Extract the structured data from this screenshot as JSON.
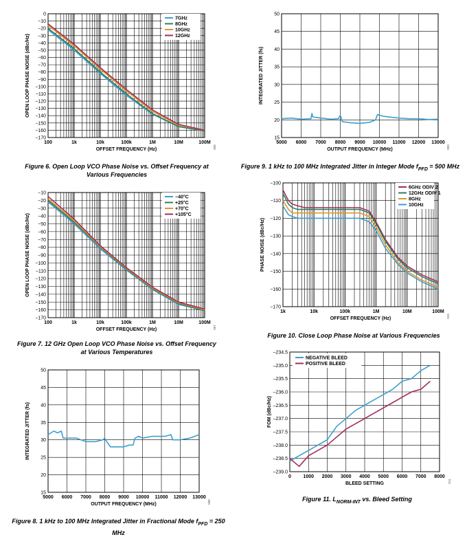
{
  "colors": {
    "blue": "#3b9fd0",
    "green": "#2e7d5b",
    "orange": "#e0962c",
    "red": "#a52a5a",
    "grid": "#000000"
  },
  "captions": {
    "fig6": "Figure 6. Open Loop VCO Phase Noise vs. Offset Frequency at Various Frequencies",
    "fig7": "Figure 7. 12 GHz Open Loop VCO Phase Noise vs. Offset Frequency at Various Temperatures",
    "fig8_pre": "Figure 8. 1 kHz to 100 MHz Integrated Jitter in Fractional Mode f",
    "fig8_sub": "PFD",
    "fig8_post": " = 250 MHz",
    "fig9_pre": "Figure 9. 1 kHz to 100 MHz Integrated Jitter in Integer Mode f",
    "fig9_sub": "PFD",
    "fig9_post": " = 500 MHz",
    "fig10": "Figure 10. Close Loop Phase Noise at Various Frequencies",
    "fig11_pre": "Figure 11. L",
    "fig11_sub": "NORM-INT",
    "fig11_post": " vs. Bleed Setting"
  },
  "chart_data": [
    {
      "id": "fig6",
      "type": "line",
      "xscale": "log",
      "xlim": [
        100,
        100000000
      ],
      "ylim": [
        -170,
        0
      ],
      "xticks": [
        100,
        1000,
        10000,
        100000,
        1000000,
        10000000,
        100000000
      ],
      "xticklabels": [
        "100",
        "1k",
        "10k",
        "100k",
        "1M",
        "10M",
        "100M"
      ],
      "yticks": [
        0,
        -10,
        -20,
        -30,
        -40,
        -50,
        -60,
        -70,
        -80,
        -90,
        -100,
        -110,
        -120,
        -130,
        -140,
        -150,
        -160,
        -170
      ],
      "xlabel": "OFFSET FREQUENCY (Hz)",
      "ylabel": "OPEN LOOP PHASE NOISE (dBc/Hz)",
      "side_code": "006",
      "legend_position": "top-right",
      "series": [
        {
          "name": "7GHz",
          "color": "#3b9fd0",
          "x": [
            100,
            1000,
            10000,
            100000,
            1000000,
            10000000,
            100000000
          ],
          "y": [
            -22,
            -50,
            -82,
            -112,
            -138,
            -155,
            -161
          ]
        },
        {
          "name": "8GHz",
          "color": "#2e7d5b",
          "x": [
            100,
            1000,
            10000,
            100000,
            1000000,
            10000000,
            100000000
          ],
          "y": [
            -20,
            -48,
            -80,
            -110,
            -137,
            -155,
            -161
          ]
        },
        {
          "name": "10GHz",
          "color": "#e0962c",
          "x": [
            100,
            1000,
            10000,
            100000,
            1000000,
            10000000,
            100000000
          ],
          "y": [
            -16,
            -44,
            -76,
            -106,
            -134,
            -153,
            -160
          ]
        },
        {
          "name": "12GHz",
          "color": "#a52a5a",
          "x": [
            100,
            1000,
            10000,
            100000,
            1000000,
            10000000,
            100000000
          ],
          "y": [
            -14,
            -42,
            -74,
            -104,
            -132,
            -152,
            -160
          ]
        }
      ]
    },
    {
      "id": "fig7",
      "type": "line",
      "xscale": "log",
      "xlim": [
        100,
        100000000
      ],
      "ylim": [
        -170,
        -10
      ],
      "xticks": [
        100,
        1000,
        10000,
        100000,
        1000000,
        10000000,
        100000000
      ],
      "xticklabels": [
        "100",
        "1k",
        "10k",
        "100k",
        "1M",
        "10M",
        "100M"
      ],
      "yticks": [
        -10,
        -20,
        -30,
        -40,
        -50,
        -60,
        -70,
        -80,
        -90,
        -100,
        -110,
        -120,
        -130,
        -140,
        -150,
        -160,
        -170
      ],
      "xlabel": "OFFSET FREQUENCY (Hz)",
      "ylabel": "OPEN LOOP PHASE NOISE (dBc/Hz)",
      "side_code": "007",
      "legend_position": "top-right",
      "series": [
        {
          "name": "−40°C",
          "color": "#3b9fd0",
          "x": [
            100,
            1000,
            10000,
            100000,
            1000000,
            10000000,
            100000000
          ],
          "y": [
            -22,
            -50,
            -82,
            -109,
            -134,
            -153,
            -161
          ]
        },
        {
          "name": "+25°C",
          "color": "#2e7d5b",
          "x": [
            100,
            1000,
            10000,
            100000,
            1000000,
            10000000,
            100000000
          ],
          "y": [
            -20,
            -48,
            -80,
            -108,
            -133,
            -152,
            -161
          ]
        },
        {
          "name": "+70°C",
          "color": "#e0962c",
          "x": [
            100,
            1000,
            10000,
            100000,
            1000000,
            10000000,
            100000000
          ],
          "y": [
            -18,
            -46,
            -79,
            -107,
            -132,
            -151,
            -160
          ]
        },
        {
          "name": "+105°C",
          "color": "#a52a5a",
          "x": [
            100,
            1000,
            10000,
            100000,
            1000000,
            10000000,
            100000000
          ],
          "y": [
            -15,
            -44,
            -78,
            -106,
            -131,
            -150,
            -159
          ]
        }
      ]
    },
    {
      "id": "fig8",
      "type": "line",
      "xscale": "linear",
      "xlim": [
        5000,
        13000
      ],
      "ylim": [
        15,
        50
      ],
      "xticks": [
        5000,
        6000,
        7000,
        8000,
        9000,
        10000,
        11000,
        12000,
        13000
      ],
      "xticklabels": [
        "5000",
        "6000",
        "7000",
        "8000",
        "9000",
        "10000",
        "11000",
        "12000",
        "13000"
      ],
      "yticks": [
        15,
        20,
        25,
        30,
        35,
        40,
        45,
        50
      ],
      "xlabel": "OUTPUT FREQUENCY (MHz)",
      "ylabel": "INTEGRATED JITTER (fs)",
      "side_code": "008",
      "series": [
        {
          "color": "#3b9fd0",
          "x": [
            5000,
            5300,
            5500,
            5700,
            5800,
            6000,
            6500,
            7000,
            7500,
            7900,
            8000,
            8100,
            8300,
            8600,
            9000,
            9300,
            9500,
            9600,
            9800,
            10000,
            10500,
            11000,
            11200,
            11500,
            11600,
            12000,
            12500,
            13000
          ],
          "y": [
            31.5,
            32.5,
            32.0,
            32.5,
            30.5,
            30.5,
            30.5,
            29.5,
            29.5,
            30.0,
            30.5,
            29.5,
            28.0,
            28.0,
            28.0,
            28.5,
            28.5,
            30.5,
            31.0,
            30.5,
            31.0,
            31.0,
            31.0,
            31.5,
            30.0,
            30.0,
            30.5,
            31.5
          ]
        }
      ]
    },
    {
      "id": "fig9",
      "type": "line",
      "xscale": "linear",
      "xlim": [
        5000,
        13000
      ],
      "ylim": [
        15,
        50
      ],
      "xticks": [
        5000,
        6000,
        7000,
        8000,
        9000,
        10000,
        11000,
        12000,
        13000
      ],
      "xticklabels": [
        "5000",
        "6000",
        "7000",
        "8000",
        "9000",
        "10000",
        "11000",
        "12000",
        "13000"
      ],
      "yticks": [
        15,
        20,
        25,
        30,
        35,
        40,
        45,
        50
      ],
      "xlabel": "OUTPUT FREQUENCY (MHz)",
      "ylabel": "INTEGRATED JITTER (fs)",
      "side_code": "009",
      "series": [
        {
          "color": "#3b9fd0",
          "x": [
            5000,
            5500,
            6000,
            6500,
            6550,
            6600,
            7000,
            7500,
            7900,
            8000,
            8100,
            8500,
            9000,
            9500,
            9800,
            9900,
            10200,
            10500,
            11000,
            11500,
            12000,
            12500,
            13000
          ],
          "y": [
            20.3,
            20.5,
            20.2,
            20.3,
            21.8,
            20.8,
            20.5,
            20.2,
            20.3,
            21.3,
            19.5,
            19.2,
            19.0,
            19.3,
            20.0,
            21.5,
            21.0,
            20.8,
            20.5,
            20.3,
            20.3,
            20.1,
            20.2
          ]
        }
      ]
    },
    {
      "id": "fig10",
      "type": "line",
      "xscale": "log",
      "xlim": [
        1000,
        100000000
      ],
      "ylim": [
        -170,
        -100
      ],
      "xticks": [
        1000,
        10000,
        100000,
        1000000,
        10000000,
        100000000
      ],
      "xticklabels": [
        "1k",
        "10k",
        "100k",
        "1M",
        "10M",
        "100M"
      ],
      "yticks": [
        -100,
        -110,
        -120,
        -130,
        -140,
        -150,
        -160,
        -170
      ],
      "xlabel": "OFFSET FREQUENCY (Hz)",
      "ylabel": "PHASE NOISE (dBc/Hz)",
      "side_code": "010",
      "legend_position": "top-right",
      "series": [
        {
          "name": "6GHz ODIV 2",
          "color": "#a52a5a",
          "x": [
            1000,
            1500,
            2000,
            3000,
            5000,
            10000,
            100000,
            300000,
            600000,
            1000000,
            2000000,
            5000000,
            10000000,
            30000000,
            100000000
          ],
          "y": [
            -104,
            -110,
            -112,
            -113,
            -114,
            -114,
            -114,
            -114,
            -116,
            -122,
            -132,
            -142,
            -147,
            -152,
            -156
          ]
        },
        {
          "name": "12GHz ODIV 1",
          "color": "#2e7d5b",
          "x": [
            1000,
            1500,
            2000,
            3000,
            5000,
            10000,
            100000,
            300000,
            600000,
            1000000,
            2000000,
            5000000,
            10000000,
            30000000,
            100000000
          ],
          "y": [
            -106,
            -112,
            -114,
            -115,
            -115,
            -115,
            -115,
            -115,
            -117,
            -123,
            -133,
            -143,
            -148,
            -153,
            -157
          ]
        },
        {
          "name": "8GHz",
          "color": "#e0962c",
          "x": [
            1000,
            1500,
            2000,
            3000,
            5000,
            10000,
            100000,
            300000,
            600000,
            1000000,
            2000000,
            5000000,
            10000000,
            30000000,
            100000000
          ],
          "y": [
            -110,
            -115,
            -117,
            -117,
            -117,
            -117,
            -117,
            -117,
            -119,
            -125,
            -135,
            -145,
            -150,
            -155,
            -159
          ]
        },
        {
          "name": "10GHz",
          "color": "#3b9fd0",
          "x": [
            1000,
            1500,
            2000,
            3000,
            5000,
            10000,
            100000,
            300000,
            600000,
            1000000,
            2000000,
            5000000,
            10000000,
            30000000,
            100000000
          ],
          "y": [
            -113,
            -118,
            -119,
            -120,
            -120,
            -120,
            -120,
            -120,
            -122,
            -127,
            -137,
            -146,
            -151,
            -156,
            -160
          ]
        }
      ]
    },
    {
      "id": "fig11",
      "type": "line",
      "xscale": "linear",
      "xlim": [
        0,
        8000
      ],
      "ylim": [
        -239.0,
        -234.5
      ],
      "xticks": [
        0,
        1000,
        2000,
        3000,
        4000,
        5000,
        6000,
        7000,
        8000
      ],
      "xticklabels": [
        "0",
        "1000",
        "2000",
        "3000",
        "4000",
        "5000",
        "6000",
        "7000",
        "8000"
      ],
      "yticks": [
        -234.5,
        -235.0,
        -235.5,
        -236.0,
        -236.5,
        -237.0,
        -237.5,
        -238.0,
        -238.5,
        -239.0
      ],
      "yticklabels": [
        "–234.5",
        "–235.0",
        "–235.5",
        "–236.0",
        "–236.5",
        "–237.0",
        "–237.5",
        "–238.0",
        "–238.5",
        "–239.0"
      ],
      "xlabel": "BLEED SETTING",
      "ylabel": "FOM (dBc/Hz)",
      "side_code": "011",
      "legend_position": "top-left",
      "series": [
        {
          "name": "NEGATIVE BLEED",
          "color": "#3b9fd0",
          "x": [
            0,
            500,
            1000,
            1500,
            2000,
            2500,
            3000,
            3500,
            4000,
            4500,
            5000,
            5500,
            6000,
            6500,
            7000,
            7500
          ],
          "y": [
            -238.6,
            -238.4,
            -238.2,
            -238.0,
            -237.8,
            -237.3,
            -237.0,
            -236.7,
            -236.5,
            -236.3,
            -236.1,
            -235.9,
            -235.6,
            -235.5,
            -235.2,
            -235.0
          ]
        },
        {
          "name": "POSITIVE BLEED",
          "color": "#a52a5a",
          "x": [
            0,
            500,
            1000,
            1500,
            2000,
            2500,
            3000,
            3500,
            4000,
            4500,
            5000,
            5500,
            6000,
            6500,
            7000,
            7500
          ],
          "y": [
            -238.5,
            -238.8,
            -238.4,
            -238.2,
            -238.0,
            -237.7,
            -237.4,
            -237.2,
            -237.0,
            -236.8,
            -236.6,
            -236.4,
            -236.2,
            -236.0,
            -235.9,
            -235.6
          ]
        }
      ]
    }
  ]
}
